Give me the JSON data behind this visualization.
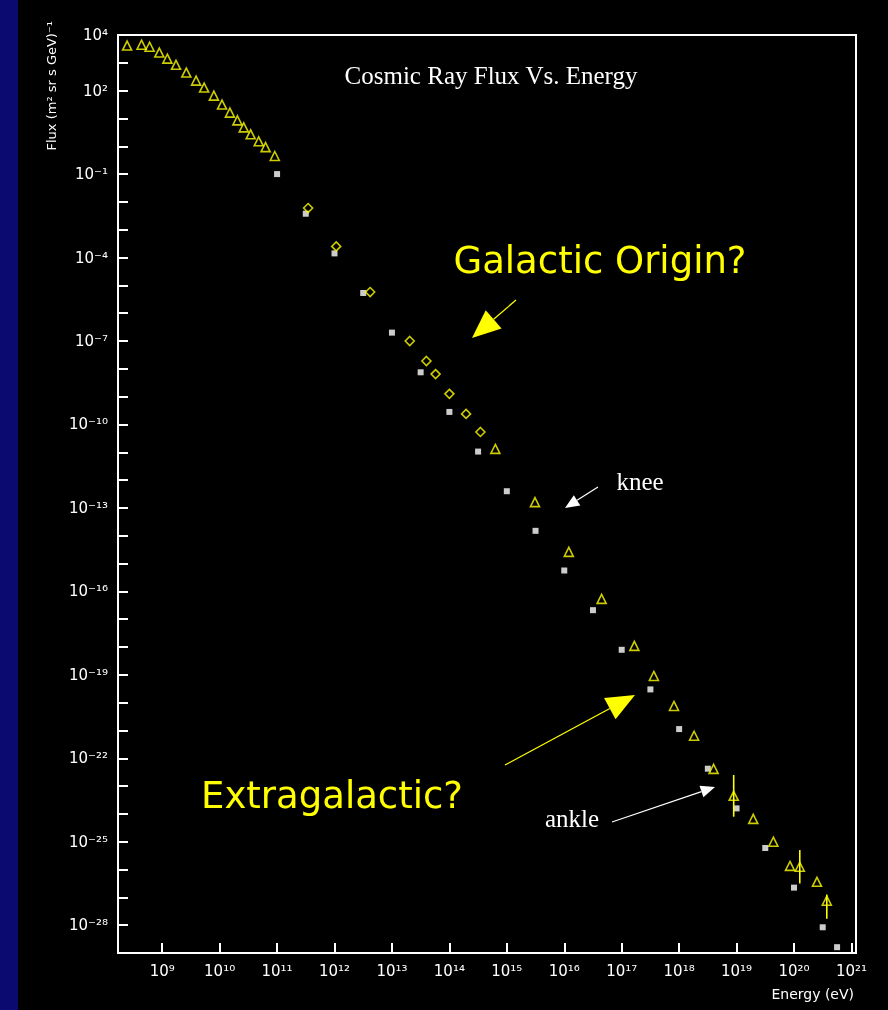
{
  "chart_data": {
    "type": "scatter",
    "title": "Cosmic Ray Flux Vs. Energy",
    "xlabel": "Energy (eV)",
    "ylabel": "Flux (m² sr s GeV)⁻¹",
    "log": "xy",
    "xlim": [
      170000000.0,
      1.2e+21
    ],
    "ylim": [
      1e-29,
      10000.0
    ],
    "xticks": [
      {
        "value": 1000000000.0,
        "label": "10⁹"
      },
      {
        "value": 10000000000.0,
        "label": "10¹⁰"
      },
      {
        "value": 100000000000.0,
        "label": "10¹¹"
      },
      {
        "value": 1000000000000.0,
        "label": "10¹²"
      },
      {
        "value": 10000000000000.0,
        "label": "10¹³"
      },
      {
        "value": 100000000000000.0,
        "label": "10¹⁴"
      },
      {
        "value": 1000000000000000.0,
        "label": "10¹⁵"
      },
      {
        "value": 1e+16,
        "label": "10¹⁶"
      },
      {
        "value": 1e+17,
        "label": "10¹⁷"
      },
      {
        "value": 1e+18,
        "label": "10¹⁸"
      },
      {
        "value": 1e+19,
        "label": "10¹⁹"
      },
      {
        "value": 1e+20,
        "label": "10²⁰"
      },
      {
        "value": 1e+21,
        "label": "10²¹"
      }
    ],
    "yticks": [
      {
        "value": 10000.0,
        "label": "10⁴"
      },
      {
        "value": 1000.0,
        "label": null
      },
      {
        "value": 100.0,
        "label": "10²"
      },
      {
        "value": 10,
        "label": null
      },
      {
        "value": 1,
        "label": null
      },
      {
        "value": 0.1,
        "label": "10⁻¹"
      },
      {
        "value": 0.01,
        "label": null
      },
      {
        "value": 0.001,
        "label": null
      },
      {
        "value": 0.0001,
        "label": "10⁻⁴"
      },
      {
        "value": 1e-05,
        "label": null
      },
      {
        "value": 1e-06,
        "label": null
      },
      {
        "value": 1e-07,
        "label": "10⁻⁷"
      },
      {
        "value": 1e-08,
        "label": null
      },
      {
        "value": 1e-09,
        "label": null
      },
      {
        "value": 1e-10,
        "label": "10⁻¹⁰"
      },
      {
        "value": 1e-11,
        "label": null
      },
      {
        "value": 1e-12,
        "label": null
      },
      {
        "value": 1e-13,
        "label": "10⁻¹³"
      },
      {
        "value": 1e-14,
        "label": null
      },
      {
        "value": 1e-15,
        "label": null
      },
      {
        "value": 1e-16,
        "label": "10⁻¹⁶"
      },
      {
        "value": 1e-17,
        "label": null
      },
      {
        "value": 1e-18,
        "label": null
      },
      {
        "value": 1e-19,
        "label": "10⁻¹⁹"
      },
      {
        "value": 1e-20,
        "label": null
      },
      {
        "value": 1e-21,
        "label": null
      },
      {
        "value": 1e-22,
        "label": "10⁻²²"
      },
      {
        "value": 1e-23,
        "label": null
      },
      {
        "value": 1e-24,
        "label": null
      },
      {
        "value": 1e-25,
        "label": "10⁻²⁵"
      },
      {
        "value": 1e-26,
        "label": null
      },
      {
        "value": 1e-27,
        "label": null
      },
      {
        "value": 1e-28,
        "label": "10⁻²⁸"
      }
    ],
    "series": [
      {
        "marker": "square",
        "color": "#ffffff",
        "x": [
          100000000000.0,
          316000000000.0,
          1000000000000.0,
          3160000000000.0,
          10000000000000.0,
          31600000000000.0,
          100000000000000.0,
          316000000000000.0,
          1000000000000000.0,
          3160000000000000.0,
          1e+16,
          3.16e+16,
          1e+17,
          3.16e+17,
          1e+18,
          3.16e+18,
          1e+19,
          3.16e+19,
          1e+20,
          3.16e+20,
          5.62e+20
        ],
        "values": [
          0.1,
          0.00376,
          0.000141,
          5.31e-06,
          2e-07,
          7.5e-09,
          2.82e-10,
          1.06e-11,
          3.98e-13,
          1.5e-14,
          5.62e-16,
          2.11e-17,
          7.94e-19,
          2.99e-20,
          1.12e-21,
          4.22e-23,
          1.58e-24,
          5.96e-26,
          2.24e-27,
          8.41e-29,
          1.62e-29
        ]
      },
      {
        "marker": "diamond",
        "color": "#ffff00",
        "x": [
          347000000000.0,
          1070000000000.0,
          4170000000000.0,
          20400000000000.0,
          39800000000000.0,
          57500000000000.0,
          100000000000000.0,
          195000000000000.0,
          347000000000000.0
        ],
        "values": [
          0.00603,
          0.000251,
          5.75e-06,
          1e-07,
          1.91e-08,
          6.46e-09,
          1.26e-09,
          2.4e-10,
          5.37e-11
        ]
      },
      {
        "marker": "triangle",
        "color": "#ffff00",
        "x": [
          245000000.0,
          437000000.0,
          603000000.0,
          891000000.0,
          1230000000.0,
          1740000000.0,
          2630000000.0,
          3890000000.0,
          5370000000.0,
          7940000000.0,
          11000000000.0,
          15100000000.0,
          20400000000.0,
          26300000000.0,
          34700000000.0,
          47900000000.0,
          63100000000.0,
          91200000000.0,
          631000000000000.0,
          3090000000000000.0,
          1.2e+16,
          4.47e+16,
          1.66e+17,
          3.63e+17,
          8.13e+17,
          1.82e+18,
          3.98e+18,
          8.91e+18,
          1.95e+19,
          4.37e+19,
          8.51e+19,
          1.26e+20,
          2.51e+20,
          3.72e+20
        ],
        "values": [
          4170.0,
          4470.0,
          3800.0,
          2340.0,
          1410.0,
          851,
          447,
          229,
          129,
          66.1,
          31.6,
          16.2,
          8.51,
          4.79,
          2.69,
          1.51,
          0.933,
          0.447,
          1.32e-11,
          1.62e-13,
          2.63e-15,
          5.37e-17,
          1.1e-18,
          9.12e-20,
          7.59e-21,
          6.46e-22,
          4.17e-23,
          4.47e-24,
          6.61e-25,
          1e-25,
          1.35e-26,
          1.26e-26,
          3.63e-27,
          7.59e-28
        ],
        "errors": [
          null,
          null,
          null,
          null,
          null,
          null,
          null,
          null,
          null,
          null,
          null,
          null,
          null,
          null,
          null,
          null,
          null,
          null,
          null,
          null,
          null,
          null,
          null,
          null,
          null,
          null,
          null,
          [
            7.94e-25,
            2.51e-23
          ],
          null,
          null,
          null,
          [
            3.16e-27,
            5.01e-26
          ],
          null,
          [
            1.7e-28,
            1.26e-27
          ]
        ]
      }
    ],
    "annotations": [
      "Galactic Origin?",
      "knee",
      "Extragalactic?",
      "ankle"
    ]
  }
}
